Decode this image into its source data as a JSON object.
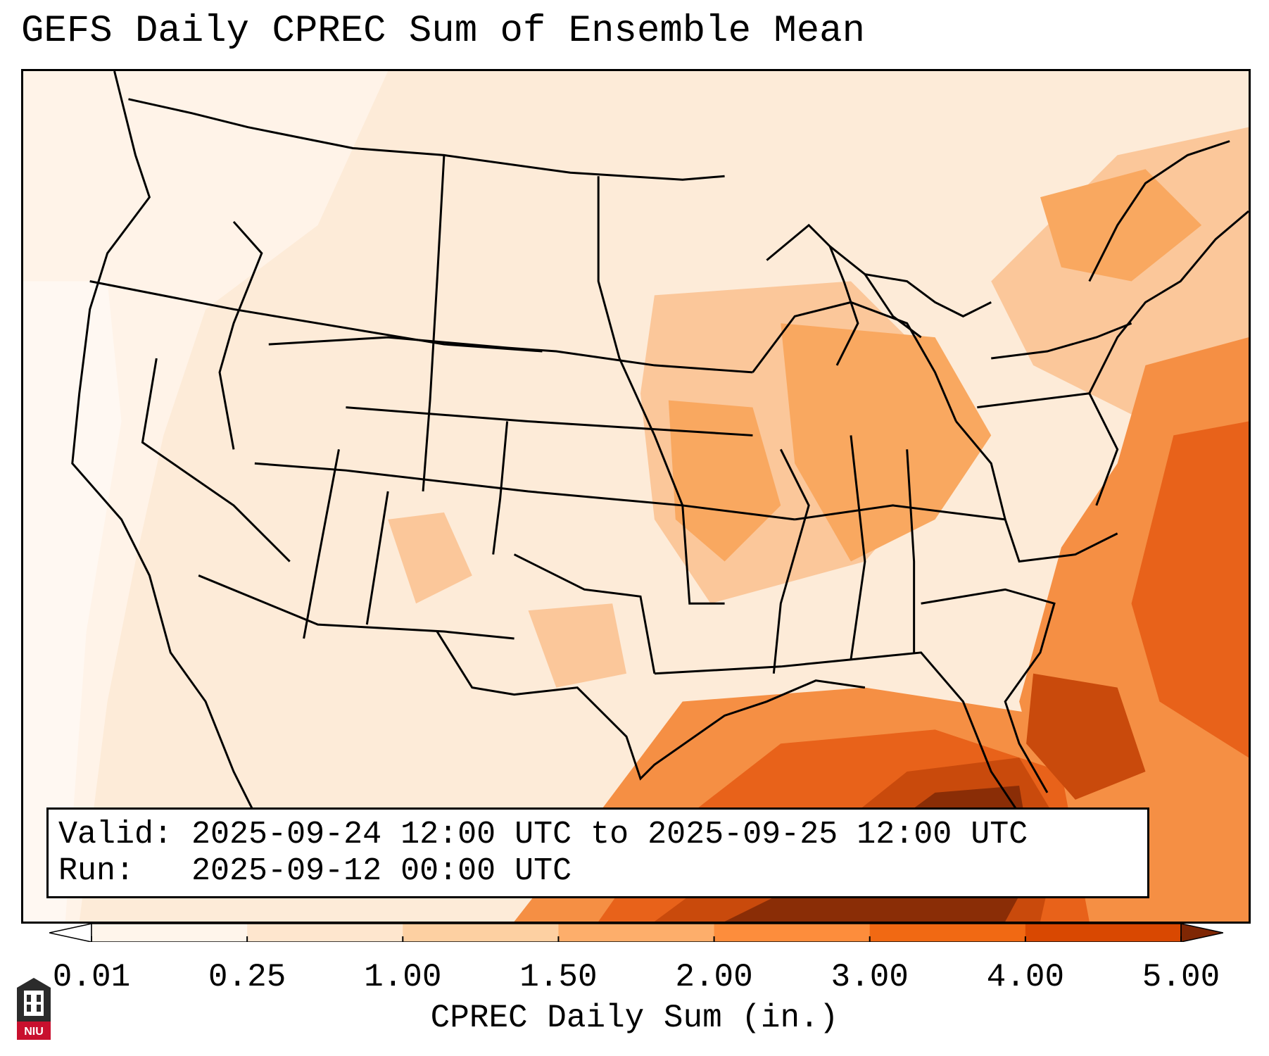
{
  "title": "GEFS Daily CPREC Sum of Ensemble Mean",
  "info": {
    "valid_label": "Valid:",
    "valid_value": "2025-09-24 12:00 UTC to 2025-09-25 12:00 UTC",
    "run_label": "Run:",
    "run_value": "2025-09-12 00:00 UTC"
  },
  "colorbar": {
    "label": "CPREC Daily Sum (in.)",
    "ticks": [
      "0.01",
      "0.25",
      "1.00",
      "1.50",
      "2.00",
      "3.00",
      "4.00",
      "5.00"
    ],
    "bins": [
      {
        "from": 0.01,
        "to": 0.25,
        "color": "#fff5eb"
      },
      {
        "from": 0.25,
        "to": 1.0,
        "color": "#fee6ce"
      },
      {
        "from": 1.0,
        "to": 1.5,
        "color": "#fdd0a2"
      },
      {
        "from": 1.5,
        "to": 2.0,
        "color": "#fdae6b"
      },
      {
        "from": 2.0,
        "to": 3.0,
        "color": "#fd8d3c"
      },
      {
        "from": 3.0,
        "to": 4.0,
        "color": "#f16913"
      },
      {
        "from": 4.0,
        "to": 5.0,
        "color": "#d94801"
      }
    ],
    "under_color": "#ffffff",
    "over_color": "#7f2704"
  },
  "logo": {
    "text": "NIU"
  }
}
